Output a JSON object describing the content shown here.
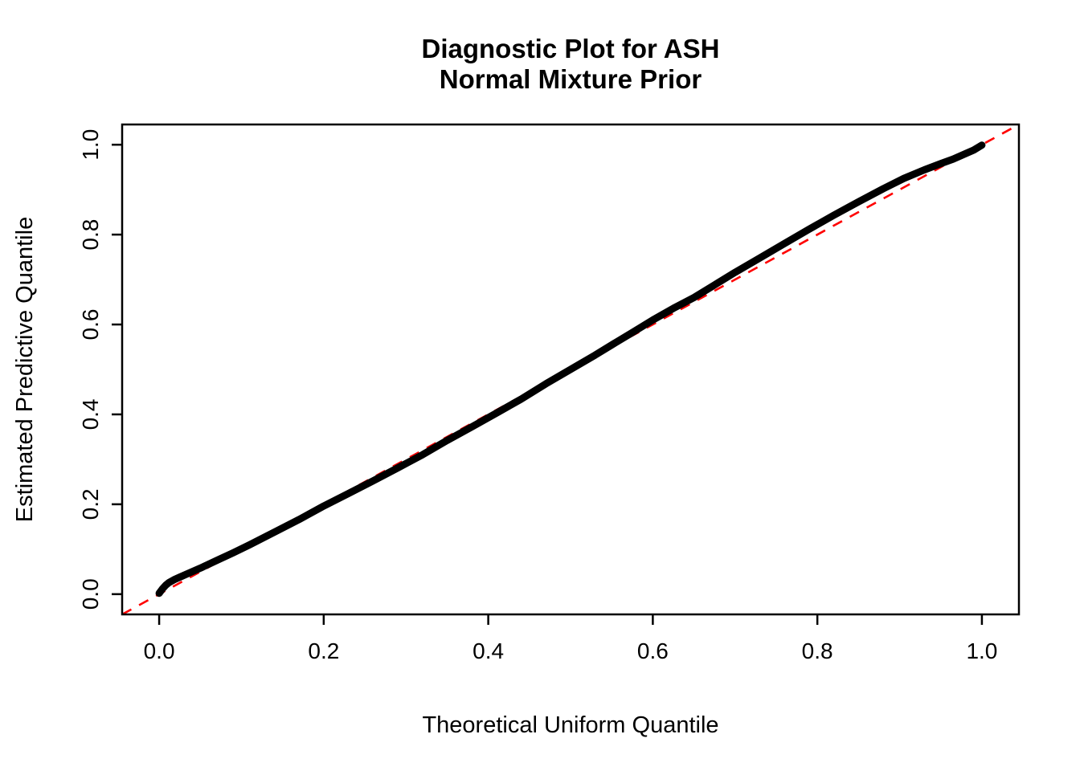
{
  "chart_data": {
    "type": "scatter",
    "title_line1": "Diagnostic Plot for ASH",
    "title_line2": "Normal Mixture Prior",
    "xlabel": "Theoretical Uniform Quantile",
    "ylabel": "Estimated Predictive Quantile",
    "xlim": [
      -0.045,
      1.045
    ],
    "ylim": [
      -0.045,
      1.045
    ],
    "xticks": [
      0.0,
      0.2,
      0.4,
      0.6,
      0.8,
      1.0
    ],
    "yticks": [
      0.0,
      0.2,
      0.4,
      0.6,
      0.8,
      1.0
    ],
    "xtick_labels": [
      "0.0",
      "0.2",
      "0.4",
      "0.6",
      "0.8",
      "1.0"
    ],
    "ytick_labels": [
      "0.0",
      "0.2",
      "0.4",
      "0.6",
      "0.8",
      "1.0"
    ],
    "grid": false,
    "legend": "none",
    "background": "#FFFFFF",
    "box_color": "#000000",
    "series": [
      {
        "name": "estimated-predictive-quantiles",
        "color": "#000000",
        "style": "thick-solid",
        "x": [
          0.0,
          0.004,
          0.008,
          0.012,
          0.018,
          0.025,
          0.035,
          0.05,
          0.07,
          0.09,
          0.11,
          0.14,
          0.17,
          0.2,
          0.23,
          0.26,
          0.29,
          0.32,
          0.35,
          0.38,
          0.41,
          0.44,
          0.47,
          0.5,
          0.53,
          0.555,
          0.575,
          0.6,
          0.625,
          0.65,
          0.675,
          0.7,
          0.73,
          0.76,
          0.79,
          0.82,
          0.85,
          0.88,
          0.905,
          0.93,
          0.95,
          0.965,
          0.98,
          0.99,
          1.0
        ],
        "y": [
          0.002,
          0.012,
          0.02,
          0.026,
          0.032,
          0.038,
          0.046,
          0.058,
          0.075,
          0.092,
          0.11,
          0.138,
          0.166,
          0.196,
          0.224,
          0.252,
          0.281,
          0.31,
          0.342,
          0.372,
          0.403,
          0.434,
          0.468,
          0.5,
          0.532,
          0.56,
          0.582,
          0.61,
          0.636,
          0.66,
          0.688,
          0.716,
          0.748,
          0.78,
          0.812,
          0.843,
          0.873,
          0.902,
          0.925,
          0.944,
          0.958,
          0.968,
          0.98,
          0.988,
          0.999
        ]
      },
      {
        "name": "reference-diagonal",
        "color": "#FF0000",
        "style": "dashed",
        "x": [
          -0.045,
          1.045
        ],
        "y": [
          -0.045,
          1.045
        ]
      }
    ]
  }
}
